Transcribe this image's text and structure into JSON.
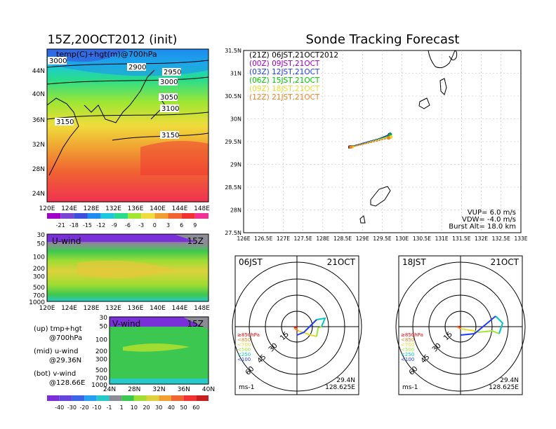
{
  "left_title": "15Z,20OCT2012 (init)",
  "right_title": "Sonde Tracking Forecast",
  "map": {
    "label": "temp(C)+hgt(m)@700hPa",
    "lat_ticks": [
      "44N",
      "40N",
      "36N",
      "32N",
      "28N",
      "24N"
    ],
    "lon_ticks": [
      "120E",
      "124E",
      "128E",
      "132E",
      "136E",
      "140E",
      "144E",
      "148E"
    ],
    "contours": [
      "3000",
      "2900",
      "2950",
      "3000",
      "3050",
      "3100",
      "3150",
      "3150"
    ],
    "contour_names": [
      "contour-label-3000a",
      "contour-label-2900",
      "contour-label-2950",
      "contour-label-3000b",
      "contour-label-3050",
      "contour-label-3100",
      "contour-label-3150a",
      "contour-label-3150b"
    ]
  },
  "temp_colorbar": [
    "-21",
    "-18",
    "-15",
    "-12",
    "-9",
    "-6",
    "-3",
    "0",
    "3",
    "6",
    "9"
  ],
  "uwind": {
    "label": "U-wind",
    "time": "15Z",
    "p_ticks": [
      "30",
      "50",
      "100",
      "200",
      "300",
      "500",
      "700",
      "1000"
    ],
    "x_ticks": [
      "120E",
      "124E",
      "128E",
      "132E",
      "136E",
      "140E",
      "144E",
      "148E"
    ]
  },
  "vwind": {
    "label": "V-wind",
    "time": "15Z",
    "p_ticks": [
      "30",
      "50",
      "100",
      "200",
      "300",
      "500",
      "700",
      "1000"
    ],
    "x_ticks": [
      "24N",
      "28N",
      "32N",
      "36N",
      "40N"
    ]
  },
  "wind_colorbar": [
    "-40",
    "-30",
    "-20",
    "-10",
    "-1",
    "1",
    "10",
    "20",
    "30",
    "40",
    "50",
    "60"
  ],
  "legend_notes": [
    {
      "a": "(up) tmp+hgt",
      "b": "@700hPa"
    },
    {
      "a": "(mid) u-wind",
      "b": "@29.36N"
    },
    {
      "a": "(bot) v-wind",
      "b": "@128.66E"
    }
  ],
  "track": {
    "lat_ticks": [
      "31.5N",
      "31N",
      "30.5N",
      "30N",
      "29.5N",
      "29N",
      "28.5N",
      "28N",
      "27.5N"
    ],
    "lon_ticks": [
      "126E",
      "126.5E",
      "127E",
      "127.5E",
      "128E",
      "128.5E",
      "129E",
      "129.5E",
      "130E",
      "130.5E",
      "131E",
      "131.5E",
      "132E",
      "132.5E",
      "133E"
    ],
    "launches": [
      {
        "text": "(21Z) 06JST,21OCT2012",
        "color": "#000000"
      },
      {
        "text": "(00Z) 09JST,21OCT",
        "color": "#a000c8"
      },
      {
        "text": "(03Z) 12JST,21OCT",
        "color": "#1e3cff"
      },
      {
        "text": "(06Z) 15JST,21OCT",
        "color": "#00c800"
      },
      {
        "text": "(09Z) 18JST,21OCT",
        "color": "#e6dc32"
      },
      {
        "text": "(12Z) 21JST,21OCT",
        "color": "#f08228"
      }
    ],
    "params": [
      "VUP= 6.0 m/s",
      "VDW= -4.0 m/s",
      "Burst Alt= 18.0 km"
    ]
  },
  "hodo_left": {
    "time": "06JST",
    "date": "21OCT",
    "lat": "29.4N",
    "lon": "128.625E",
    "unit": "ms-1",
    "ring_labels": [
      "15",
      "30",
      "45",
      "60"
    ]
  },
  "hodo_right": {
    "time": "18JST",
    "date": "21OCT",
    "lat": "29.4N",
    "lon": "128.625E",
    "unit": "ms-1",
    "ring_labels": [
      "15",
      "30",
      "45",
      "60"
    ]
  },
  "hodo_levels": [
    {
      "text": "≥850hPa",
      "color": "#ff0000"
    },
    {
      "text": "<850",
      "color": "#f08228"
    },
    {
      "text": "<700",
      "color": "#e6dc32"
    },
    {
      "text": "<500",
      "color": "#a0e632"
    },
    {
      "text": "<250",
      "color": "#00c8c8"
    },
    {
      "text": "<100",
      "color": "#1e3cff"
    }
  ],
  "chart_data": {
    "type": "line",
    "title": "Sonde Tracking Forecast",
    "xlabel": "",
    "ylabel": "",
    "xlim": [
      126,
      133
    ],
    "ylim": [
      27.5,
      31.5
    ],
    "series": [
      {
        "name": "(21Z) 06JST,21OCT2012",
        "x": [
          129.68,
          129.4,
          129.0,
          128.68
        ],
        "y": [
          29.65,
          29.55,
          29.45,
          29.38
        ]
      },
      {
        "name": "(00Z) 09JST,21OCT",
        "x": [
          129.68,
          129.4,
          129.0,
          128.7
        ],
        "y": [
          29.64,
          29.55,
          29.46,
          29.39
        ]
      },
      {
        "name": "(03Z) 12JST,21OCT",
        "x": [
          129.7,
          129.4,
          129.0,
          128.72
        ],
        "y": [
          29.66,
          29.56,
          29.46,
          29.39
        ]
      },
      {
        "name": "(06Z) 15JST,21OCT",
        "x": [
          129.7,
          129.4,
          129.0,
          128.74
        ],
        "y": [
          29.64,
          29.55,
          29.45,
          29.39
        ]
      },
      {
        "name": "(09Z) 18JST,21OCT",
        "x": [
          129.72,
          129.4,
          129.0,
          128.74
        ],
        "y": [
          29.6,
          29.54,
          29.44,
          29.38
        ]
      },
      {
        "name": "(12Z) 21JST,21OCT",
        "x": [
          129.66,
          129.4,
          129.0,
          128.7
        ],
        "y": [
          29.58,
          29.52,
          29.44,
          29.38
        ]
      }
    ]
  }
}
